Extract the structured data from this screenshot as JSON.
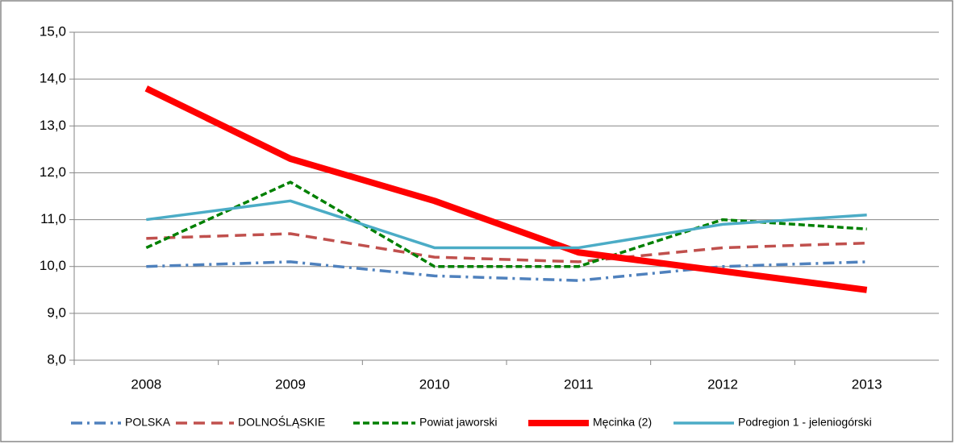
{
  "chart_data": {
    "type": "line",
    "categories": [
      "2008",
      "2009",
      "2010",
      "2011",
      "2012",
      "2013"
    ],
    "series": [
      {
        "name": "POLSKA",
        "color": "#4f81bd",
        "values": [
          10.0,
          10.1,
          9.8,
          9.7,
          10.0,
          10.1
        ]
      },
      {
        "name": "DOLNOŚLĄSKIE",
        "color": "#c0504d",
        "values": [
          10.6,
          10.7,
          10.2,
          10.1,
          10.4,
          10.5
        ]
      },
      {
        "name": "Powiat jaworski",
        "color": "#008000",
        "values": [
          10.4,
          11.8,
          10.0,
          10.0,
          11.0,
          10.8
        ]
      },
      {
        "name": "Męcinka (2)",
        "color": "#ff0000",
        "values": [
          13.8,
          12.3,
          11.4,
          10.3,
          9.9,
          9.5
        ]
      },
      {
        "name": "Podregion 1 - jeleniogórski",
        "color": "#4bacc6",
        "values": [
          11.0,
          11.4,
          10.4,
          10.4,
          10.9,
          11.1
        ]
      }
    ],
    "ylim": [
      8,
      15
    ],
    "yticks": [
      {
        "value": 8,
        "label": "8,0"
      },
      {
        "value": 9,
        "label": "9,0"
      },
      {
        "value": 10,
        "label": "10,0"
      },
      {
        "value": 11,
        "label": "11,0"
      },
      {
        "value": 12,
        "label": "12,0"
      },
      {
        "value": 13,
        "label": "13,0"
      },
      {
        "value": 14,
        "label": "14,0"
      },
      {
        "value": 15,
        "label": "15,0"
      }
    ],
    "grid": true,
    "legend": "bottom"
  }
}
